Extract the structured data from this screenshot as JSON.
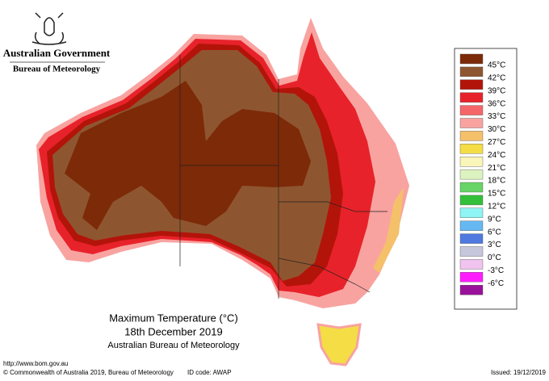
{
  "header": {
    "government": "Australian Government",
    "agency": "Bureau of Meteorology"
  },
  "map": {
    "title": "Maximum Temperature (°C)",
    "date": "18th December 2019",
    "source": "Australian Bureau of Meteorology"
  },
  "legend": {
    "colors": [
      "#7d2a08",
      "#8e5630",
      "#b3140a",
      "#e8222a",
      "#f5666a",
      "#f8a3a0",
      "#f5c06a",
      "#f4dd45",
      "#faf5b8",
      "#dcf3c0",
      "#66d466",
      "#34bf3a",
      "#8ff4f4",
      "#66b8f2",
      "#4f78e0",
      "#c6c6dc",
      "#f0c4ee",
      "#ff1cff",
      "#99119a"
    ],
    "labels": [
      "45°C",
      "42°C",
      "39°C",
      "36°C",
      "33°C",
      "30°C",
      "27°C",
      "24°C",
      "21°C",
      "18°C",
      "15°C",
      "12°C",
      "9°C",
      "6°C",
      "3°C",
      "0°C",
      "-3°C",
      "-6°C"
    ]
  },
  "footer": {
    "url": "http://www.bom.gov.au",
    "copyright": "© Commonwealth of Australia 2019, Bureau of Meteorology",
    "id_code": "ID code: AWAP",
    "issued": "Issued: 19/12/2019"
  }
}
